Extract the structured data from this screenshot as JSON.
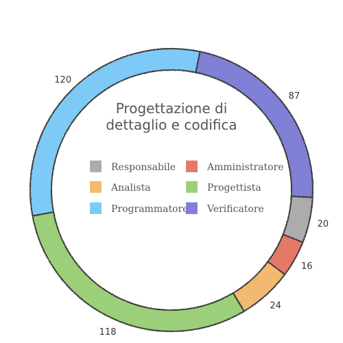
{
  "chart_data": {
    "type": "pie",
    "subtype": "donut",
    "title_lines": [
      "Progettazione di",
      "dettaglio e codifica"
    ],
    "categories": [
      "Responsabile",
      "Amministratore",
      "Analista",
      "Progettista",
      "Programmatore",
      "Verificatore"
    ],
    "series": [
      {
        "values": [
          20,
          16,
          24,
          118,
          120,
          87
        ]
      }
    ],
    "colors": {
      "Responsabile": "#9e9e9e",
      "Amministratore": "#e0614e",
      "Analista": "#f0ad58",
      "Progettista": "#8bc760",
      "Programmatore": "#69c1f5",
      "Verificatore": "#6a6ad0"
    },
    "legend": {
      "placement": "center",
      "columns": 2,
      "order": [
        "Responsabile",
        "Amministratore",
        "Analista",
        "Progettista",
        "Programmatore",
        "Verificatore"
      ]
    },
    "data_labels": true,
    "style": "hand-drawn"
  }
}
